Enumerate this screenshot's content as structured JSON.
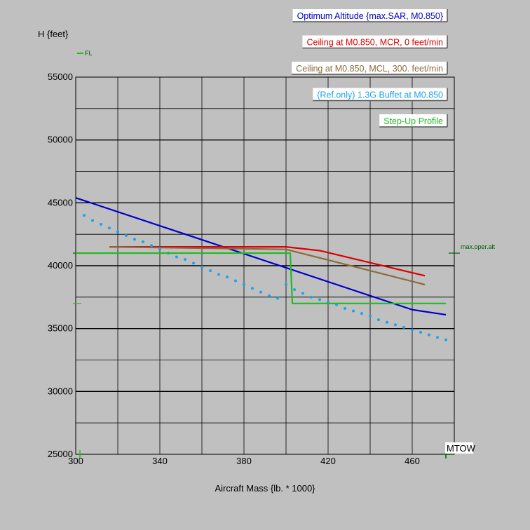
{
  "chart_data": {
    "type": "line",
    "xlabel": "Aircraft Mass {lb. * 1000}",
    "ylabel": "H {feet}",
    "xlim": [
      300,
      480
    ],
    "ylim": [
      25000,
      55000
    ],
    "x_ticks": [
      300,
      340,
      380,
      420,
      460
    ],
    "y_ticks": [
      25000,
      30000,
      35000,
      40000,
      45000,
      50000,
      55000
    ],
    "grid": true,
    "legend_placement": "top-right",
    "fl_label": "FL",
    "reference_lines": [
      {
        "label": "max.oper.alt",
        "y": 41000,
        "color": "#006000"
      }
    ],
    "annotations": [
      {
        "text": "MTOW",
        "x": 476
      }
    ],
    "series": [
      {
        "name": "Optimum Altitude {max.SAR, M0.850}",
        "color": "#0000cc",
        "style": "solid",
        "x": [
          300,
          460,
          476
        ],
        "y": [
          45400,
          36500,
          36100
        ]
      },
      {
        "name": "Ceiling at M0.850, MCR, 0 feet/min",
        "color": "#dd0000",
        "style": "solid",
        "x": [
          316,
          400,
          416,
          466
        ],
        "y": [
          41500,
          41500,
          41200,
          39200
        ]
      },
      {
        "name": "Ceiling at M0.850, MCL, 300. feet/min",
        "color": "#8b6a3c",
        "style": "solid",
        "x": [
          316,
          400,
          466
        ],
        "y": [
          41500,
          41300,
          38500
        ]
      },
      {
        "name": "(Ref.only) 1.3G Buffet at M0.850",
        "color": "#1aa3e8",
        "style": "dotted",
        "x": [
          304,
          308,
          312,
          316,
          320,
          324,
          328,
          332,
          336,
          340,
          344,
          348,
          352,
          356,
          360,
          364,
          368,
          372,
          376,
          380,
          384,
          388,
          392,
          396,
          400,
          404,
          408,
          412,
          416,
          420,
          424,
          428,
          432,
          436,
          440,
          444,
          448,
          452,
          456,
          460,
          464,
          468,
          472,
          476
        ],
        "y": [
          44000,
          43600,
          43300,
          43000,
          42700,
          42400,
          42100,
          41900,
          41600,
          41300,
          41000,
          40700,
          40500,
          40200,
          39900,
          39600,
          39300,
          39100,
          38800,
          38500,
          38200,
          37900,
          37600,
          37400,
          38500,
          38100,
          37800,
          37500,
          37300,
          37100,
          36900,
          36600,
          36400,
          36200,
          36000,
          35700,
          35500,
          35300,
          35100,
          34900,
          34700,
          34500,
          34300,
          34100
        ]
      },
      {
        "name": "Step-Up Profile",
        "color": "#22bb22",
        "style": "solid",
        "x": [
          300,
          402,
          403,
          476
        ],
        "y": [
          41000,
          41000,
          37000,
          37000
        ]
      }
    ]
  }
}
